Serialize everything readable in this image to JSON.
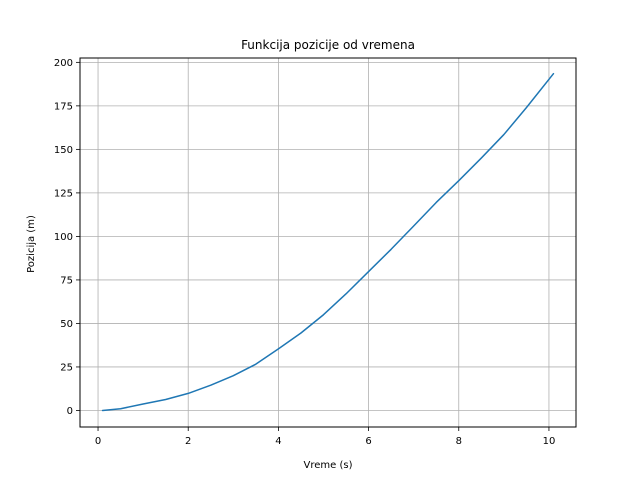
{
  "chart_data": {
    "type": "line",
    "title": "Funkcija pozicije od vremena",
    "xlabel": "Vreme (s)",
    "ylabel": "Pozicija (m)",
    "xlim": [
      -0.4,
      10.6
    ],
    "ylim": [
      -9.5,
      202.5
    ],
    "grid": true,
    "xticks": [
      0,
      2,
      4,
      6,
      8,
      10
    ],
    "yticks": [
      0,
      25,
      50,
      75,
      100,
      125,
      150,
      175,
      200
    ],
    "series": [
      {
        "color": "#1f77b4",
        "x": [
          0.1,
          0.5,
          1,
          1.5,
          2,
          2.5,
          3,
          3.5,
          4,
          4.5,
          5,
          5.5,
          6,
          6.5,
          7,
          7.5,
          8,
          8.5,
          9,
          9.5,
          10.1
        ],
        "y": [
          0.0,
          1.0,
          3.7,
          6.3,
          9.8,
          14.5,
          20.0,
          26.6,
          35.4,
          44.5,
          55.0,
          67.0,
          79.8,
          92.6,
          106.0,
          119.5,
          132.0,
          145.0,
          158.5,
          174.0,
          193.5
        ]
      }
    ]
  }
}
